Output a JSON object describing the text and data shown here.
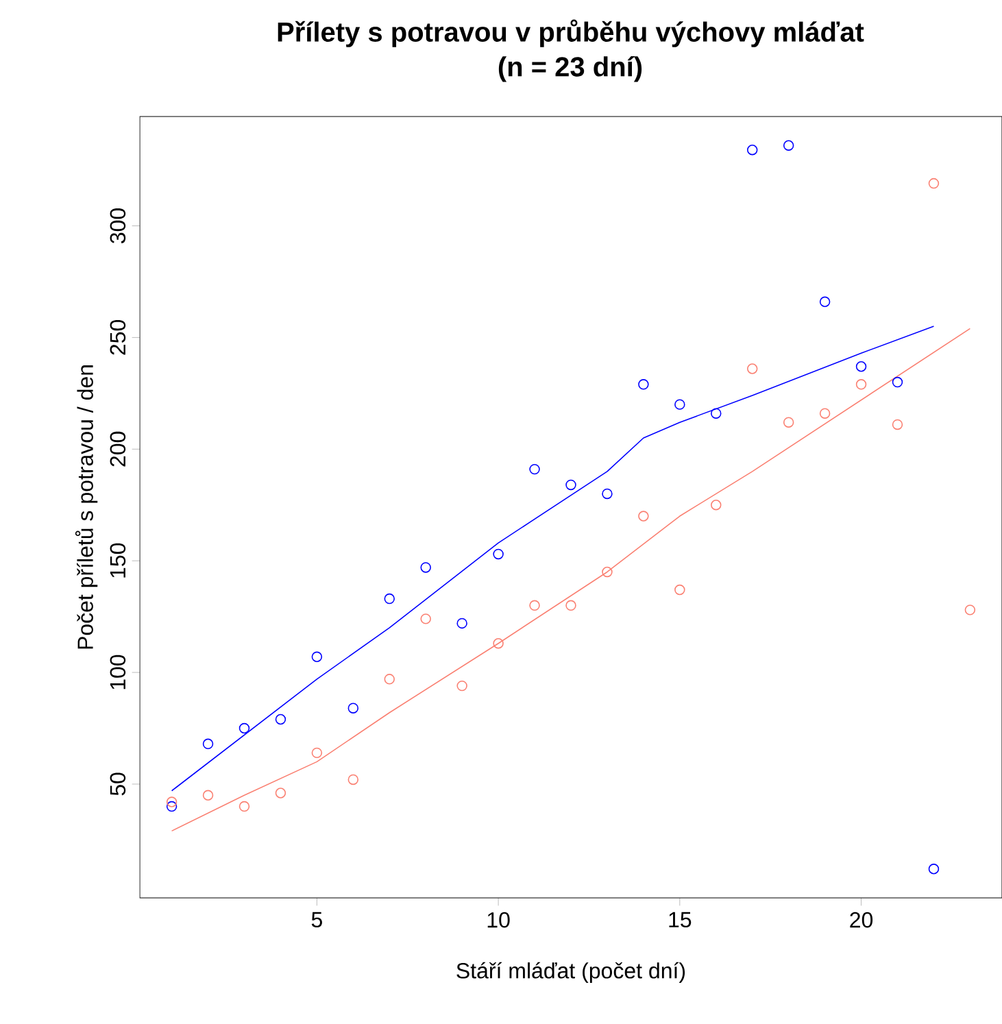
{
  "chart_data": {
    "type": "scatter",
    "title": "Přílety s potravou v průběhu výchovy mláďat",
    "subtitle": "(n = 23 dní)",
    "xlabel": "Stáří mláďat (počet dní)",
    "ylabel": "Počet příletů s potravou / den",
    "xlim": [
      0.12,
      23.88
    ],
    "ylim": [
      -0.96,
      348.96
    ],
    "xticks": [
      5,
      10,
      15,
      20
    ],
    "yticks": [
      50,
      100,
      150,
      200,
      250,
      300
    ],
    "grid": false,
    "series": [
      {
        "marker": "circle",
        "color": "#0000ff",
        "x": [
          1,
          2,
          3,
          4,
          5,
          6,
          7,
          8,
          9,
          10,
          11,
          12,
          13,
          14,
          15,
          16,
          17,
          18,
          19,
          20,
          21,
          22
        ],
        "values": [
          40,
          68,
          75,
          79,
          107,
          84,
          133,
          147,
          122,
          153,
          191,
          184,
          180,
          229,
          220,
          216,
          334,
          336,
          266,
          237,
          230,
          12
        ]
      },
      {
        "marker": "circle",
        "color": "#fa8072",
        "x": [
          1,
          2,
          3,
          4,
          5,
          6,
          7,
          8,
          9,
          10,
          11,
          12,
          13,
          14,
          15,
          16,
          17,
          18,
          19,
          20,
          21,
          22,
          23
        ],
        "values": [
          42,
          45,
          40,
          46,
          64,
          52,
          97,
          124,
          94,
          113,
          130,
          130,
          145,
          170,
          137,
          175,
          236,
          212,
          216,
          229,
          211,
          319,
          128
        ]
      },
      {
        "type": "line",
        "marker": "none",
        "color": "#0000ff",
        "x": [
          1,
          3,
          5,
          7,
          10,
          13,
          14,
          15,
          17,
          20,
          22
        ],
        "values": [
          47,
          72,
          97,
          120,
          158,
          190,
          205,
          212,
          224,
          243,
          255
        ]
      },
      {
        "type": "line",
        "marker": "none",
        "color": "#fa8072",
        "x": [
          1,
          3,
          5,
          7,
          10,
          13,
          15,
          17,
          20,
          23
        ],
        "values": [
          29,
          45,
          60,
          82,
          113,
          145,
          170,
          190,
          222,
          254
        ]
      }
    ]
  }
}
